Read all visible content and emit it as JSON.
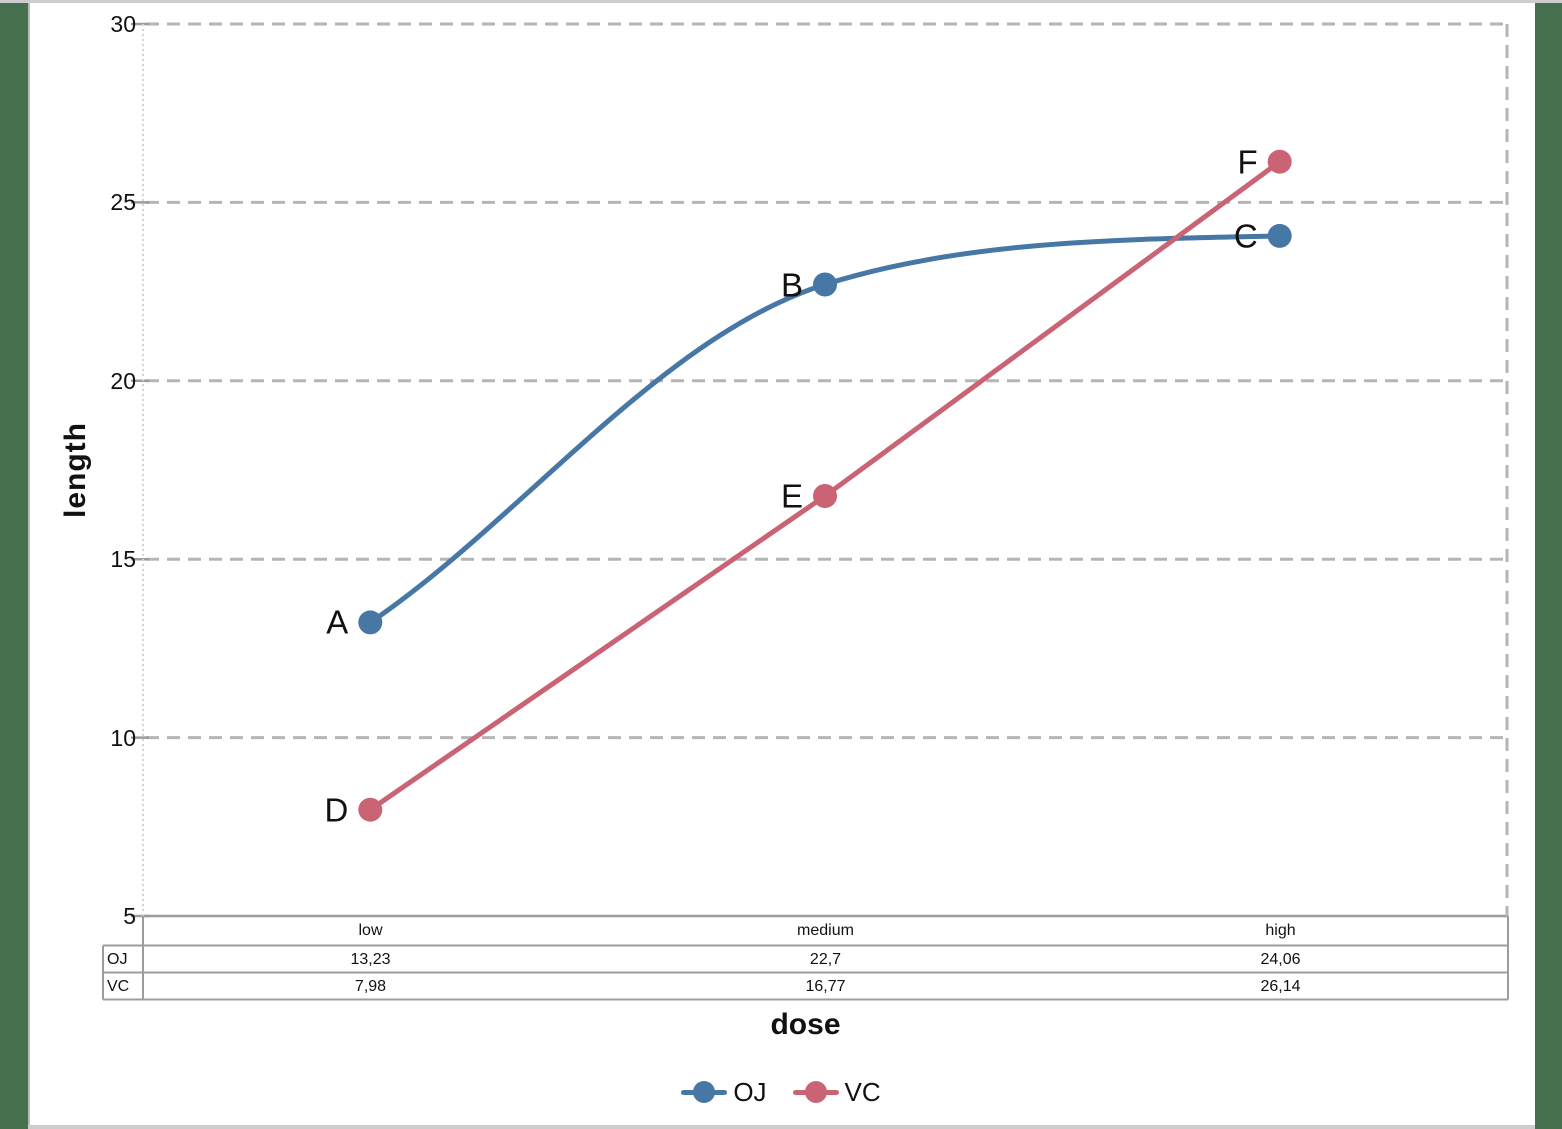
{
  "chart_data": {
    "type": "line",
    "title": "",
    "xlabel": "dose",
    "ylabel": "length",
    "categories": [
      "low",
      "medium",
      "high"
    ],
    "series": [
      {
        "name": "OJ",
        "values": [
          13.23,
          22.7,
          24.06
        ],
        "display_values": [
          "13,23",
          "22,7",
          "24,06"
        ],
        "point_labels": [
          "A",
          "B",
          "C"
        ],
        "color": "#4677a5",
        "smooth": true
      },
      {
        "name": "VC",
        "values": [
          7.98,
          16.77,
          26.14
        ],
        "display_values": [
          "7,98",
          "16,77",
          "26,14"
        ],
        "point_labels": [
          "D",
          "E",
          "F"
        ],
        "color": "#ca6374",
        "smooth": false
      }
    ],
    "ylim": [
      5,
      30
    ],
    "yticks": [
      30,
      25,
      20,
      15,
      10,
      5
    ],
    "grid": "horizontal-dashed",
    "legend_position": "bottom",
    "legend": [
      "OJ",
      "VC"
    ],
    "data_table": {
      "col_headers": [
        "low",
        "medium",
        "high"
      ],
      "row_headers": [
        "OJ",
        "VC"
      ],
      "cells": [
        [
          "13,23",
          "22,7",
          "24,06"
        ],
        [
          "7,98",
          "16,77",
          "26,14"
        ]
      ]
    }
  },
  "colors": {
    "frame_green": "#47704e",
    "edge_gray": "#cdcdcd",
    "axis_gray": "#9c9c9c",
    "gridline_gray": "#b5b5b5",
    "left_axis_dotted": "#d4d4d4",
    "text": "#111111"
  }
}
